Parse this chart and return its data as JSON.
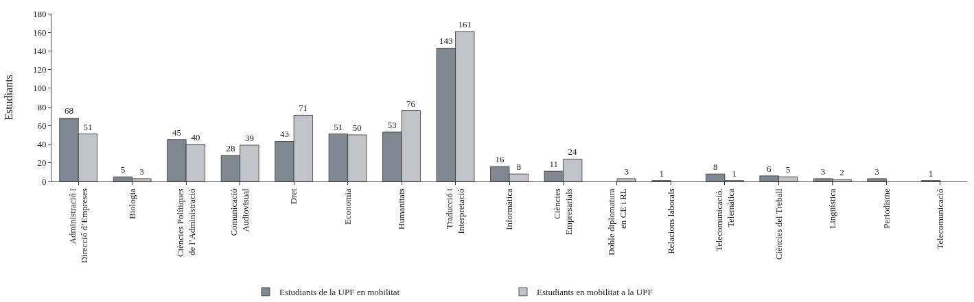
{
  "chart_data": {
    "type": "bar",
    "ylabel": "Estudiants",
    "categories": [
      "Administració i\nDirecció d’Empreses",
      "Biologia",
      "Ciències Polítiques\nde l’Administració",
      "Comunicació\nAudiovisual",
      "Dret",
      "Economia",
      "Humanitats",
      "Traducció i\nInterpretació",
      "Informàtica",
      "Ciències\nEmpresarials",
      "Doble diplomatura\nen CE i RL",
      "Relacions laborals",
      "Telecomunicació.\nTelemàtica",
      "Ciències del Treball",
      "Lingüística",
      "Periodisme",
      "Telecomunicació"
    ],
    "series": [
      {
        "name": "Estudiants de la UPF en mobilitat",
        "color": "#7f8891",
        "values": [
          68,
          5,
          45,
          28,
          43,
          51,
          53,
          143,
          16,
          11,
          null,
          1,
          8,
          6,
          3,
          3,
          1
        ]
      },
      {
        "name": "Estudiants en mobilitat a la UPF",
        "color": "#c0c3c8",
        "values": [
          51,
          3,
          40,
          39,
          71,
          50,
          76,
          161,
          8,
          24,
          3,
          null,
          1,
          5,
          2,
          null,
          null
        ]
      }
    ],
    "ylim": [
      0,
      180
    ],
    "yticks": [
      0,
      20,
      40,
      60,
      80,
      100,
      120,
      140,
      160,
      180
    ],
    "grid": false,
    "legend": "bottom",
    "data_labels": true
  }
}
